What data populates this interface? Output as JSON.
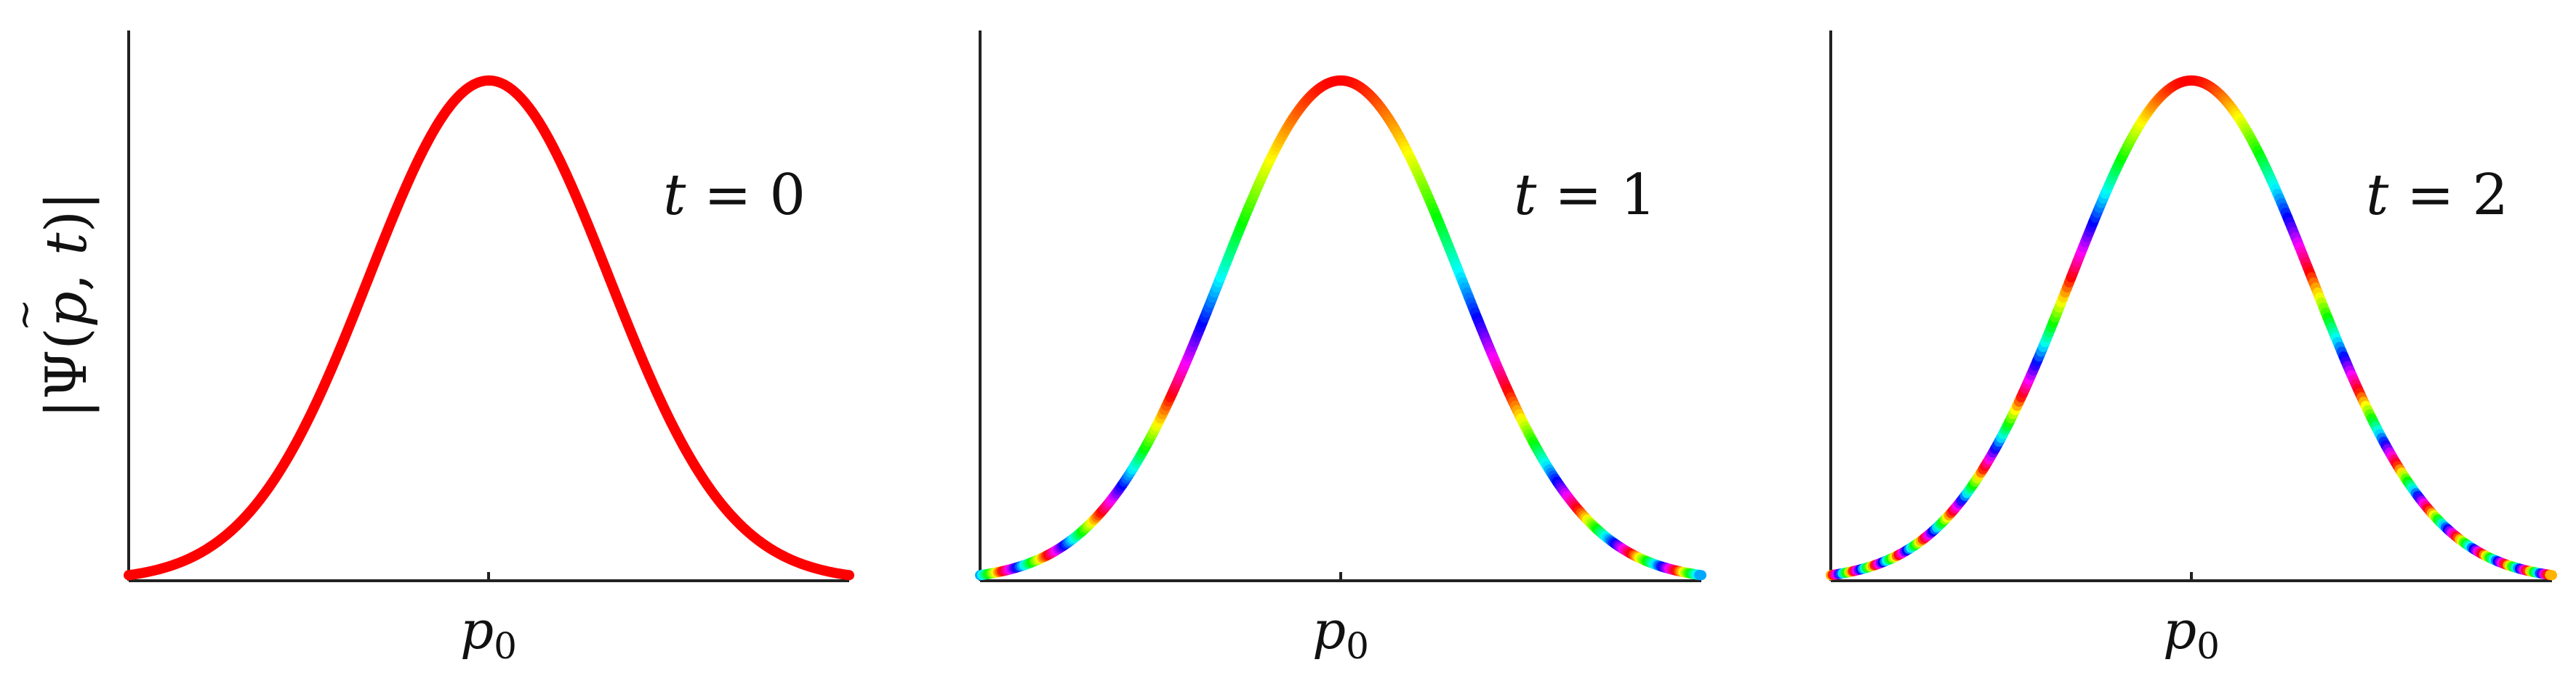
{
  "chart_data": [
    {
      "type": "line",
      "annotation": "t = 0",
      "ylabel": "|Ψ̃(p, t)|",
      "xtick_label": "p0",
      "curve": "gaussian",
      "center": 0,
      "sigma": 1,
      "xlim": [
        -3,
        3
      ],
      "ylim": [
        0,
        1.1
      ],
      "phase_frequency": 0,
      "color_mode": "solid",
      "color": "#ff0000"
    },
    {
      "type": "line",
      "annotation": "t = 1",
      "ylabel": "",
      "xtick_label": "p0",
      "curve": "gaussian",
      "center": 0,
      "sigma": 1,
      "xlim": [
        -3,
        3
      ],
      "ylim": [
        0,
        1.1
      ],
      "phase_frequency": 1,
      "color_mode": "phase-hue"
    },
    {
      "type": "line",
      "annotation": "t = 2",
      "ylabel": "",
      "xtick_label": "p0",
      "curve": "gaussian",
      "center": 0,
      "sigma": 1,
      "xlim": [
        -3,
        3
      ],
      "ylim": [
        0,
        1.1
      ],
      "phase_frequency": 2,
      "color_mode": "phase-hue"
    }
  ],
  "colors": {
    "axis": "#222222",
    "solid_curve": "#ff0000"
  }
}
